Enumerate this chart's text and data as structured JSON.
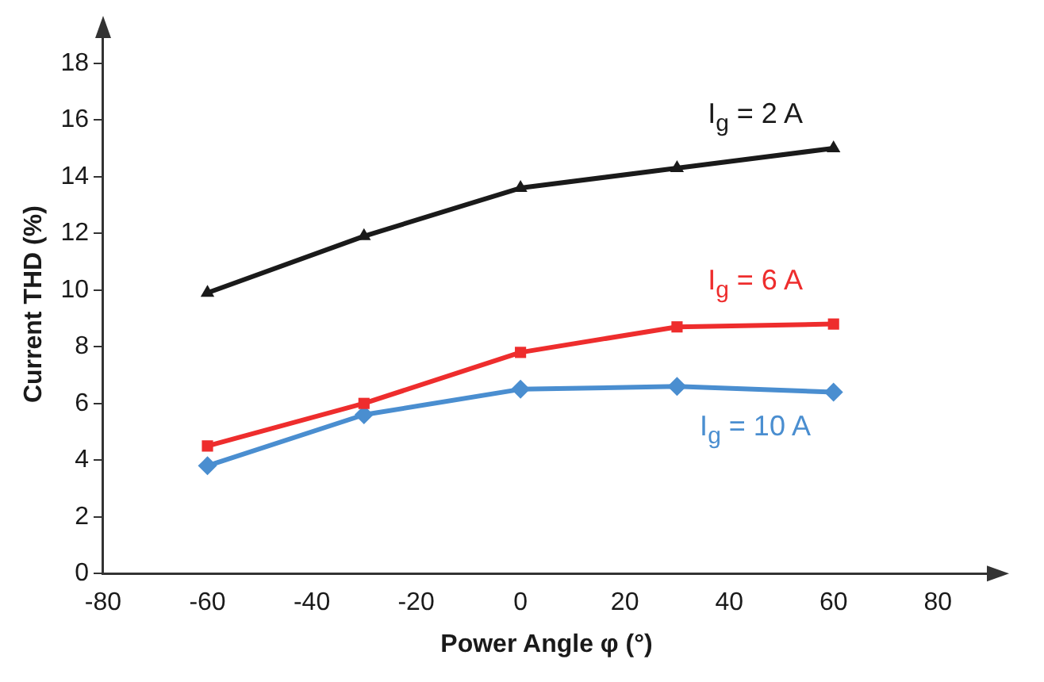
{
  "chart_data": {
    "type": "line",
    "xlabel": "Power Angle φ (°)",
    "ylabel": "Current THD (%)",
    "x": [
      -60,
      -30,
      0,
      30,
      60
    ],
    "series": [
      {
        "name": "I$_{g}$ = 2 A",
        "color": "#1a1a1a",
        "marker": "triangle",
        "values": [
          9.9,
          11.9,
          13.6,
          14.3,
          15.0
        ]
      },
      {
        "name": "I$_{g}$ = 6 A",
        "color": "#ee2d2d",
        "marker": "square",
        "values": [
          4.5,
          6.0,
          7.8,
          8.7,
          8.8
        ]
      },
      {
        "name": "I$_{g}$ = 10 A",
        "color": "#4a8ed0",
        "marker": "diamond",
        "values": [
          3.8,
          5.6,
          6.5,
          6.6,
          6.4
        ]
      }
    ],
    "xlim": [
      -80,
      90
    ],
    "xticks": [
      -80,
      -60,
      -40,
      -20,
      0,
      20,
      40,
      60,
      80
    ],
    "ylim": [
      0,
      19
    ],
    "yticks": [
      0,
      2,
      4,
      6,
      8,
      10,
      12,
      14,
      16,
      18
    ],
    "grid": false,
    "legend": false,
    "line_style": "solid"
  }
}
